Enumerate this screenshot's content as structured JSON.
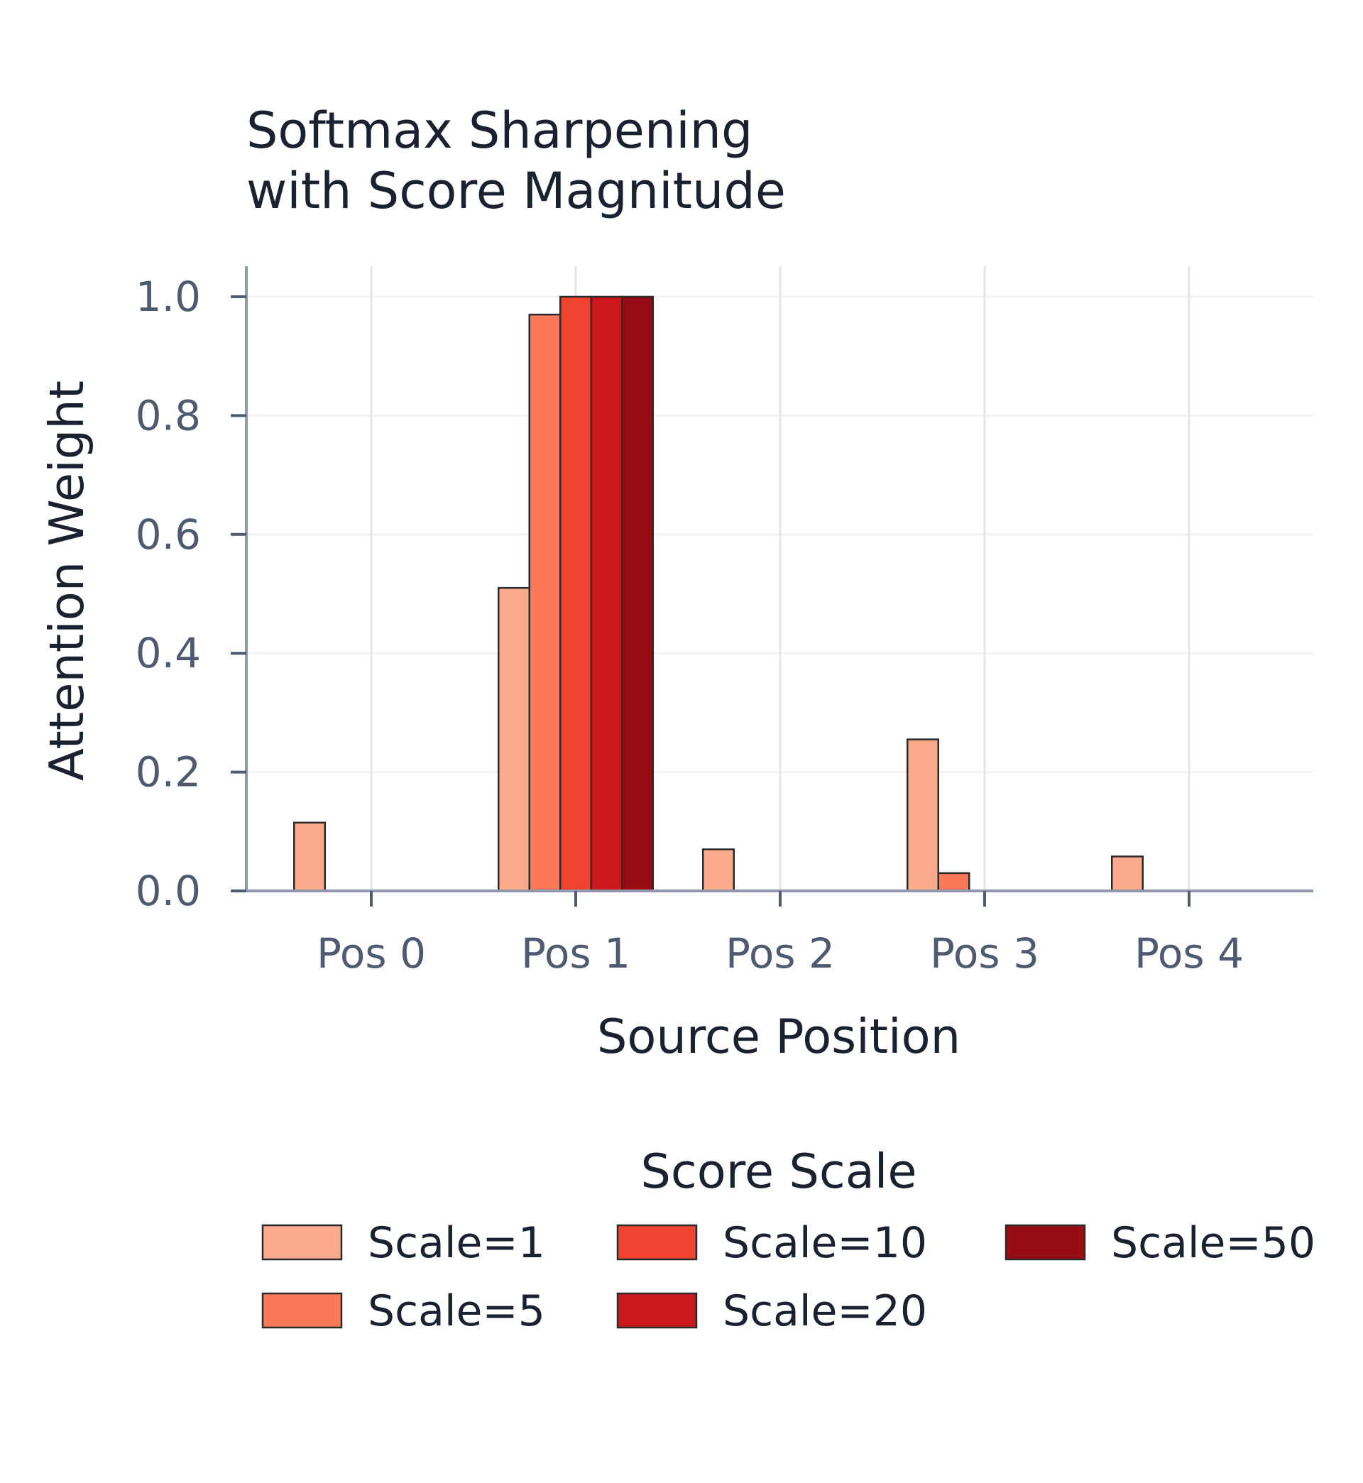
{
  "chart_data": {
    "type": "bar",
    "title_lines": [
      "Softmax Sharpening",
      "with Score Magnitude"
    ],
    "xlabel": "Source Position",
    "ylabel": "Attention Weight",
    "categories": [
      "Pos 0",
      "Pos 1",
      "Pos 2",
      "Pos 3",
      "Pos 4"
    ],
    "ylim": [
      0,
      1.05
    ],
    "yticks": [
      0.0,
      0.2,
      0.4,
      0.6,
      0.8,
      1.0
    ],
    "ytick_labels": [
      "0.0",
      "0.2",
      "0.4",
      "0.6",
      "0.8",
      "1.0"
    ],
    "grid": true,
    "legend": {
      "title": "Score Scale",
      "placement": "bottom",
      "columns": 3
    },
    "series": [
      {
        "name": "Scale=1",
        "color": "#fbab8c",
        "values": [
          0.115,
          0.51,
          0.07,
          0.255,
          0.058
        ]
      },
      {
        "name": "Scale=5",
        "color": "#fb7858",
        "values": [
          0.0,
          0.97,
          0.0,
          0.03,
          0.0
        ]
      },
      {
        "name": "Scale=10",
        "color": "#f04430",
        "values": [
          0.0,
          1.0,
          0.0,
          0.0,
          0.0
        ]
      },
      {
        "name": "Scale=20",
        "color": "#ca181c",
        "values": [
          0.0,
          1.0,
          0.0,
          0.0,
          0.0
        ]
      },
      {
        "name": "Scale=50",
        "color": "#980c14",
        "values": [
          0.0,
          1.0,
          0.0,
          0.0,
          0.0
        ]
      }
    ]
  }
}
